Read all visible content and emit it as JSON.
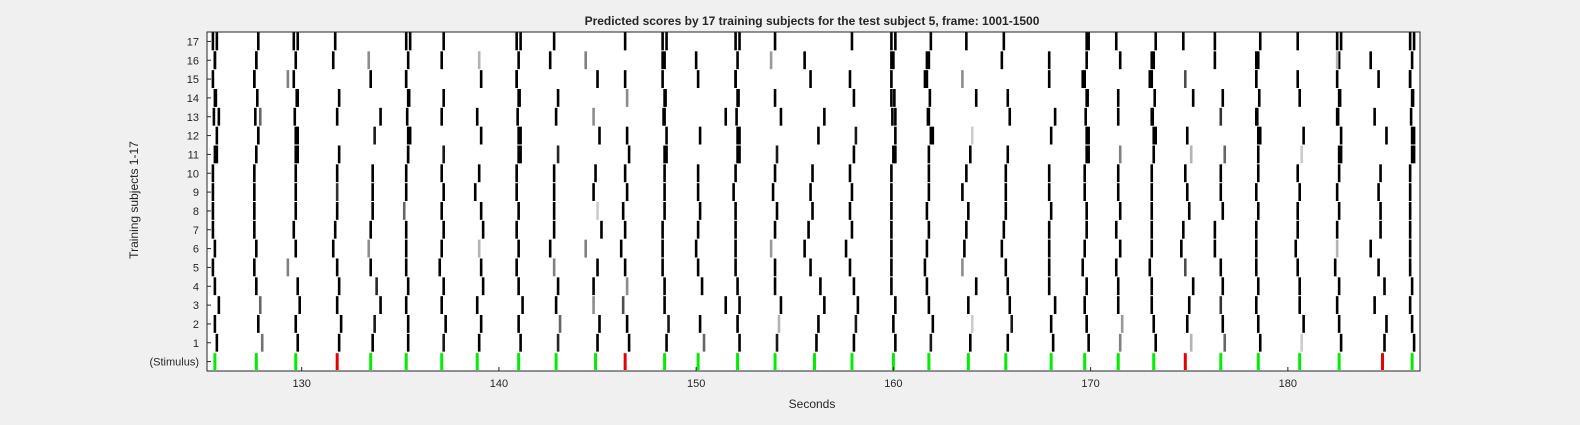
{
  "chart_data": {
    "type": "heatmap",
    "title": "Predicted scores by 17 training subjects for the test subject 5, frame: 1001-1500",
    "xlabel": "Seconds",
    "ylabel": "Training subjects 1-17",
    "xlim": [
      125.2,
      186.7
    ],
    "x_ticks": [
      130,
      140,
      150,
      160,
      170,
      180
    ],
    "y_categories": [
      "(Stimulus)",
      "1",
      "2",
      "3",
      "4",
      "5",
      "6",
      "7",
      "8",
      "9",
      "10",
      "11",
      "12",
      "13",
      "14",
      "15",
      "16",
      "17"
    ],
    "stimulus_colors": {
      "match": "#00ee00",
      "mismatch": "#e60000"
    },
    "stimulus": [
      {
        "t": 125.6,
        "type": "match"
      },
      {
        "t": 127.7,
        "type": "match"
      },
      {
        "t": 129.7,
        "type": "match"
      },
      {
        "t": 131.8,
        "type": "mismatch"
      },
      {
        "t": 133.5,
        "type": "match"
      },
      {
        "t": 135.3,
        "type": "match"
      },
      {
        "t": 137.1,
        "type": "match"
      },
      {
        "t": 138.9,
        "type": "match"
      },
      {
        "t": 141.0,
        "type": "match"
      },
      {
        "t": 142.9,
        "type": "match"
      },
      {
        "t": 144.9,
        "type": "match"
      },
      {
        "t": 146.4,
        "type": "mismatch"
      },
      {
        "t": 148.4,
        "type": "match"
      },
      {
        "t": 150.1,
        "type": "match"
      },
      {
        "t": 152.1,
        "type": "match"
      },
      {
        "t": 154.0,
        "type": "match"
      },
      {
        "t": 156.0,
        "type": "match"
      },
      {
        "t": 157.9,
        "type": "match"
      },
      {
        "t": 160.0,
        "type": "match"
      },
      {
        "t": 161.8,
        "type": "match"
      },
      {
        "t": 163.8,
        "type": "match"
      },
      {
        "t": 165.7,
        "type": "match"
      },
      {
        "t": 168.0,
        "type": "match"
      },
      {
        "t": 169.7,
        "type": "match"
      },
      {
        "t": 171.4,
        "type": "match"
      },
      {
        "t": 173.2,
        "type": "match"
      },
      {
        "t": 174.8,
        "type": "mismatch"
      },
      {
        "t": 176.6,
        "type": "match"
      },
      {
        "t": 178.5,
        "type": "match"
      },
      {
        "t": 180.6,
        "type": "match"
      },
      {
        "t": 182.6,
        "type": "match"
      },
      {
        "t": 184.8,
        "type": "mismatch"
      },
      {
        "t": 186.3,
        "type": "match"
      }
    ],
    "consistent_responses": [
      125.5,
      127.6,
      129.6,
      135.3,
      140.9,
      148.3,
      152.0,
      159.9,
      161.7,
      169.7,
      173.1,
      178.4,
      182.5,
      186.2
    ],
    "per_subject_responses": {
      "1": [
        [
          125.7,
          1
        ],
        [
          128.0,
          0.55
        ],
        [
          129.8,
          1
        ],
        [
          131.9,
          1
        ],
        [
          133.6,
          1
        ],
        [
          135.4,
          1
        ],
        [
          137.2,
          0.9
        ],
        [
          139.0,
          1
        ],
        [
          141.1,
          1
        ],
        [
          143.0,
          0.85
        ],
        [
          145.0,
          1
        ],
        [
          146.6,
          1
        ],
        [
          148.5,
          1
        ],
        [
          150.4,
          0.6
        ],
        [
          152.2,
          1
        ],
        [
          154.1,
          0.9
        ],
        [
          156.1,
          1
        ],
        [
          158.0,
          1
        ],
        [
          160.1,
          1
        ],
        [
          161.9,
          0.9
        ],
        [
          163.9,
          1
        ],
        [
          165.8,
          1
        ],
        [
          168.1,
          1
        ],
        [
          169.9,
          1
        ],
        [
          171.5,
          0.5
        ],
        [
          173.3,
          1
        ],
        [
          175.1,
          0.3
        ],
        [
          176.8,
          0.6
        ],
        [
          178.6,
          1
        ],
        [
          180.7,
          0.2
        ],
        [
          182.7,
          1
        ],
        [
          184.9,
          1
        ],
        [
          186.4,
          1
        ]
      ],
      "2": [
        [
          125.6,
          1
        ],
        [
          127.8,
          1
        ],
        [
          129.7,
          1
        ],
        [
          132.0,
          1
        ],
        [
          133.7,
          0.9
        ],
        [
          135.4,
          1
        ],
        [
          137.3,
          1
        ],
        [
          139.1,
          1
        ],
        [
          141.0,
          1
        ],
        [
          143.1,
          0.6
        ],
        [
          145.1,
          1
        ],
        [
          146.5,
          1
        ],
        [
          148.6,
          0.9
        ],
        [
          150.2,
          1
        ],
        [
          152.1,
          1
        ],
        [
          154.2,
          0.3
        ],
        [
          156.2,
          1
        ],
        [
          158.1,
          0.9
        ],
        [
          160.0,
          1
        ],
        [
          162.0,
          1
        ],
        [
          164.0,
          0.2
        ],
        [
          166.0,
          0.9
        ],
        [
          168.0,
          1
        ],
        [
          169.8,
          1
        ],
        [
          171.6,
          0.4
        ],
        [
          173.2,
          1
        ],
        [
          174.9,
          1
        ],
        [
          176.7,
          1
        ],
        [
          178.5,
          1
        ],
        [
          180.8,
          1
        ],
        [
          182.6,
          1
        ],
        [
          185.0,
          1
        ],
        [
          186.3,
          1
        ]
      ],
      "3": [
        [
          125.8,
          1
        ],
        [
          127.9,
          0.6
        ],
        [
          129.9,
          1
        ],
        [
          131.8,
          1
        ],
        [
          134.0,
          1
        ],
        [
          135.3,
          1
        ],
        [
          137.1,
          1
        ],
        [
          138.9,
          1
        ],
        [
          141.2,
          1
        ],
        [
          142.9,
          1
        ],
        [
          144.8,
          0.45
        ],
        [
          146.3,
          0.7
        ],
        [
          148.4,
          1
        ],
        [
          151.5,
          1
        ],
        [
          152.2,
          1
        ],
        [
          154.3,
          1
        ],
        [
          156.5,
          1
        ],
        [
          158.2,
          1
        ],
        [
          160.1,
          1
        ],
        [
          161.8,
          1
        ],
        [
          163.8,
          1
        ],
        [
          165.9,
          1
        ],
        [
          168.2,
          1
        ],
        [
          169.7,
          1
        ],
        [
          171.4,
          1
        ],
        [
          173.1,
          1
        ],
        [
          175.0,
          1
        ],
        [
          176.6,
          0.8
        ],
        [
          178.4,
          1
        ],
        [
          180.6,
          1
        ],
        [
          182.5,
          1
        ],
        [
          184.4,
          1
        ],
        [
          186.2,
          1
        ]
      ],
      "4": [
        [
          125.6,
          1
        ],
        [
          127.7,
          1
        ],
        [
          129.8,
          1
        ],
        [
          131.9,
          1
        ],
        [
          133.8,
          0.85
        ],
        [
          135.4,
          1
        ],
        [
          137.2,
          1
        ],
        [
          139.2,
          1
        ],
        [
          141.0,
          1
        ],
        [
          143.0,
          1
        ],
        [
          144.8,
          1
        ],
        [
          146.5,
          0.45
        ],
        [
          148.4,
          1
        ],
        [
          150.3,
          1
        ],
        [
          152.1,
          1
        ],
        [
          154.0,
          1
        ],
        [
          156.3,
          1
        ],
        [
          158.0,
          1
        ],
        [
          159.9,
          1
        ],
        [
          161.7,
          1
        ],
        [
          164.2,
          1
        ],
        [
          165.8,
          1
        ],
        [
          167.9,
          1
        ],
        [
          169.8,
          1
        ],
        [
          171.4,
          1
        ],
        [
          173.1,
          1
        ],
        [
          175.2,
          1
        ],
        [
          176.7,
          1
        ],
        [
          178.5,
          1
        ],
        [
          180.6,
          1
        ],
        [
          182.6,
          1
        ],
        [
          184.9,
          1
        ],
        [
          186.3,
          1
        ]
      ],
      "5": [
        [
          125.5,
          1
        ],
        [
          127.6,
          1
        ],
        [
          129.3,
          0.5
        ],
        [
          131.8,
          1
        ],
        [
          133.5,
          1
        ],
        [
          135.3,
          1
        ],
        [
          137.0,
          1
        ],
        [
          139.1,
          1
        ],
        [
          140.9,
          1
        ],
        [
          142.8,
          0.5
        ],
        [
          145.0,
          1
        ],
        [
          146.4,
          1
        ],
        [
          148.3,
          1
        ],
        [
          150.1,
          1
        ],
        [
          152.0,
          1
        ],
        [
          154.0,
          1
        ],
        [
          155.8,
          1
        ],
        [
          157.8,
          1
        ],
        [
          159.9,
          1
        ],
        [
          161.6,
          1
        ],
        [
          163.5,
          0.45
        ],
        [
          165.7,
          1
        ],
        [
          167.9,
          1
        ],
        [
          169.6,
          1
        ],
        [
          171.3,
          1
        ],
        [
          173.0,
          1
        ],
        [
          174.8,
          0.7
        ],
        [
          176.6,
          1
        ],
        [
          178.4,
          1
        ],
        [
          180.5,
          1
        ],
        [
          182.4,
          1
        ],
        [
          184.6,
          1
        ],
        [
          186.2,
          1
        ]
      ],
      "6": [
        [
          125.6,
          1
        ],
        [
          127.7,
          1
        ],
        [
          129.7,
          1
        ],
        [
          131.6,
          1
        ],
        [
          133.4,
          0.45
        ],
        [
          135.3,
          1
        ],
        [
          137.1,
          1
        ],
        [
          139.0,
          0.3
        ],
        [
          141.0,
          1
        ],
        [
          142.6,
          1
        ],
        [
          144.4,
          0.5
        ],
        [
          146.2,
          1
        ],
        [
          148.3,
          1
        ],
        [
          150.0,
          1
        ],
        [
          152.0,
          1
        ],
        [
          153.8,
          0.4
        ],
        [
          155.5,
          1
        ],
        [
          157.6,
          1
        ],
        [
          159.9,
          1
        ],
        [
          161.7,
          1
        ],
        [
          163.6,
          1
        ],
        [
          165.5,
          1
        ],
        [
          167.9,
          1
        ],
        [
          169.7,
          1
        ],
        [
          171.5,
          1
        ],
        [
          173.1,
          1
        ],
        [
          174.6,
          1
        ],
        [
          176.3,
          1
        ],
        [
          178.4,
          1
        ],
        [
          180.4,
          1
        ],
        [
          182.5,
          0.3
        ],
        [
          184.2,
          1
        ],
        [
          186.2,
          1
        ]
      ],
      "7": [
        [
          125.5,
          1
        ],
        [
          127.6,
          1
        ],
        [
          129.6,
          1
        ],
        [
          131.7,
          1
        ],
        [
          133.5,
          1
        ],
        [
          135.3,
          1
        ],
        [
          137.2,
          1
        ],
        [
          139.2,
          1
        ],
        [
          140.9,
          1
        ],
        [
          142.8,
          1
        ],
        [
          145.2,
          1
        ],
        [
          146.4,
          1
        ],
        [
          148.3,
          1
        ],
        [
          150.1,
          1
        ],
        [
          152.0,
          1
        ],
        [
          154.0,
          1
        ],
        [
          155.7,
          1
        ],
        [
          157.9,
          1
        ],
        [
          159.9,
          1
        ],
        [
          161.8,
          1
        ],
        [
          163.7,
          1
        ],
        [
          165.6,
          1
        ],
        [
          167.9,
          1
        ],
        [
          169.8,
          1
        ],
        [
          171.3,
          1
        ],
        [
          173.1,
          1
        ],
        [
          174.7,
          1
        ],
        [
          176.3,
          1
        ],
        [
          178.4,
          1
        ],
        [
          180.5,
          1
        ],
        [
          182.5,
          1
        ],
        [
          184.7,
          1
        ],
        [
          186.2,
          1
        ]
      ],
      "8": [
        [
          125.5,
          1
        ],
        [
          127.6,
          1
        ],
        [
          129.7,
          1
        ],
        [
          131.8,
          1
        ],
        [
          133.6,
          1
        ],
        [
          135.2,
          0.6
        ],
        [
          137.1,
          1
        ],
        [
          139.1,
          1
        ],
        [
          141.0,
          1
        ],
        [
          142.8,
          1
        ],
        [
          145.0,
          0.2
        ],
        [
          146.3,
          1
        ],
        [
          148.4,
          1
        ],
        [
          150.2,
          1
        ],
        [
          152.0,
          1
        ],
        [
          154.1,
          1
        ],
        [
          155.9,
          1
        ],
        [
          157.8,
          1
        ],
        [
          159.9,
          1
        ],
        [
          161.7,
          1
        ],
        [
          163.8,
          1
        ],
        [
          165.7,
          1
        ],
        [
          168.0,
          1
        ],
        [
          169.8,
          1
        ],
        [
          171.5,
          1
        ],
        [
          173.1,
          1
        ],
        [
          175.0,
          1
        ],
        [
          176.7,
          1
        ],
        [
          178.5,
          1
        ],
        [
          180.5,
          1
        ],
        [
          182.6,
          1
        ],
        [
          184.7,
          1
        ],
        [
          186.2,
          1
        ]
      ],
      "9": [
        [
          125.5,
          1
        ],
        [
          127.6,
          1
        ],
        [
          129.7,
          1
        ],
        [
          131.8,
          0.8
        ],
        [
          133.6,
          1
        ],
        [
          135.3,
          1
        ],
        [
          137.2,
          1
        ],
        [
          138.8,
          1
        ],
        [
          140.9,
          1
        ],
        [
          142.8,
          1
        ],
        [
          144.8,
          1
        ],
        [
          146.5,
          1
        ],
        [
          148.4,
          1
        ],
        [
          150.1,
          1
        ],
        [
          151.9,
          1
        ],
        [
          153.9,
          1
        ],
        [
          155.8,
          1
        ],
        [
          157.9,
          1
        ],
        [
          159.9,
          1
        ],
        [
          161.8,
          1
        ],
        [
          163.5,
          1
        ],
        [
          165.7,
          1
        ],
        [
          167.9,
          1
        ],
        [
          169.7,
          1
        ],
        [
          171.4,
          1
        ],
        [
          173.1,
          1
        ],
        [
          174.9,
          1
        ],
        [
          176.6,
          1
        ],
        [
          178.4,
          1
        ],
        [
          180.6,
          1
        ],
        [
          182.5,
          1
        ],
        [
          184.6,
          1
        ],
        [
          186.2,
          1
        ]
      ],
      "10": [
        [
          125.5,
          1
        ],
        [
          127.6,
          1
        ],
        [
          129.7,
          1
        ],
        [
          131.8,
          1
        ],
        [
          133.6,
          1
        ],
        [
          135.3,
          1
        ],
        [
          137.1,
          1
        ],
        [
          139.0,
          1
        ],
        [
          140.9,
          1
        ],
        [
          142.8,
          1
        ],
        [
          144.9,
          1
        ],
        [
          146.4,
          1
        ],
        [
          148.4,
          1
        ],
        [
          150.1,
          1
        ],
        [
          152.0,
          1
        ],
        [
          154.0,
          1
        ],
        [
          155.9,
          1
        ],
        [
          157.8,
          1
        ],
        [
          159.9,
          1
        ],
        [
          161.8,
          1
        ],
        [
          163.7,
          1
        ],
        [
          165.7,
          1
        ],
        [
          167.9,
          1
        ],
        [
          169.7,
          1
        ],
        [
          171.4,
          1
        ],
        [
          173.1,
          1
        ],
        [
          174.8,
          1
        ],
        [
          176.6,
          1
        ],
        [
          178.5,
          1
        ],
        [
          180.5,
          1
        ],
        [
          182.6,
          1
        ],
        [
          184.7,
          1
        ],
        [
          186.2,
          1
        ]
      ]
    }
  }
}
